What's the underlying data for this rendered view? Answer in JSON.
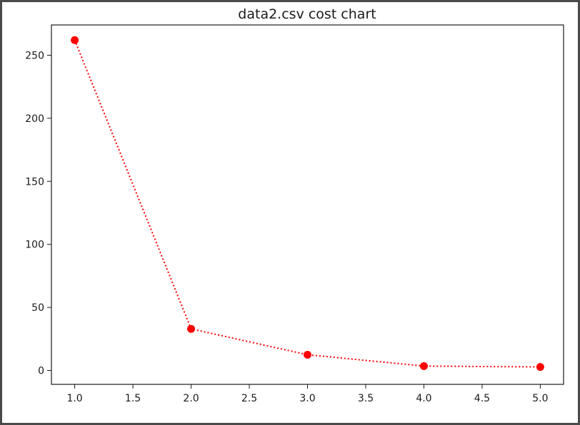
{
  "chart_data": {
    "type": "line",
    "title": "data2.csv cost chart",
    "xlabel": "",
    "ylabel": "",
    "x": [
      1.0,
      2.0,
      3.0,
      4.0,
      5.0
    ],
    "series": [
      {
        "values": [
          262,
          33,
          12.5,
          3.5,
          2.8
        ],
        "color": "#ff0000",
        "line_style": "dotted",
        "marker": "circle"
      }
    ],
    "xlim": [
      0.8,
      5.2
    ],
    "ylim": [
      -11,
      274
    ],
    "x_ticks": [
      1.0,
      1.5,
      2.0,
      2.5,
      3.0,
      3.5,
      4.0,
      4.5,
      5.0
    ],
    "x_tick_labels": [
      "1.0",
      "1.5",
      "2.0",
      "2.5",
      "3.0",
      "3.5",
      "4.0",
      "4.5",
      "5.0"
    ],
    "y_ticks": [
      0,
      50,
      100,
      150,
      200,
      250
    ],
    "y_tick_labels": [
      "0",
      "50",
      "100",
      "150",
      "200",
      "250"
    ],
    "grid": false,
    "legend": "none"
  }
}
